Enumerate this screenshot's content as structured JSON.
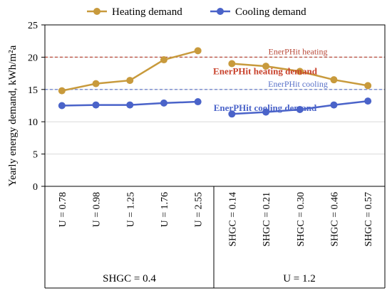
{
  "chart_data": {
    "type": "line",
    "ylabel": "Yearly energy  demand, kWh/m²a",
    "ylim": [
      0,
      25
    ],
    "yticks": [
      0,
      5,
      10,
      15,
      20,
      25
    ],
    "grid": true,
    "legend_position": "top",
    "categories": [
      "U = 0.78",
      "U = 0.98",
      "U = 1.25",
      "U = 1.76",
      "U = 2.55",
      "SHGC = 0.14",
      "SHGC = 0.21",
      "SHGC = 0.30",
      "SHGC = 0.46",
      "SHGC = 0.57"
    ],
    "groups": [
      {
        "label": "SHGC = 0.4",
        "categories": [
          "U = 0.78",
          "U = 0.98",
          "U = 1.25",
          "U = 1.76",
          "U = 2.55"
        ]
      },
      {
        "label": "U = 1.2",
        "categories": [
          "SHGC = 0.14",
          "SHGC = 0.21",
          "SHGC = 0.30",
          "SHGC = 0.46",
          "SHGC = 0.57"
        ]
      }
    ],
    "series": [
      {
        "name": "Heating demand",
        "color": "#c89a3c",
        "segments": [
          [
            14.8,
            15.9,
            16.4,
            19.6,
            21.0
          ],
          [
            19.0,
            18.6,
            17.8,
            16.5,
            15.6
          ]
        ]
      },
      {
        "name": "Cooling demand",
        "color": "#4a63c9",
        "segments": [
          [
            12.5,
            12.6,
            12.6,
            12.9,
            13.1
          ],
          [
            11.2,
            11.5,
            11.9,
            12.6,
            13.2
          ]
        ]
      }
    ],
    "reference_lines": [
      {
        "label": "EnerPHit heating",
        "value": 20,
        "color": "#b84a3a",
        "dash": true
      },
      {
        "label": "EnerPHit cooling",
        "value": 15,
        "color": "#5a72c8",
        "dash": true
      }
    ],
    "annotations": [
      {
        "text": "EnerPHit heating demand",
        "color": "#c8402a"
      },
      {
        "text": "EnerPHit cooling demand",
        "color": "#4a63c9"
      }
    ]
  }
}
